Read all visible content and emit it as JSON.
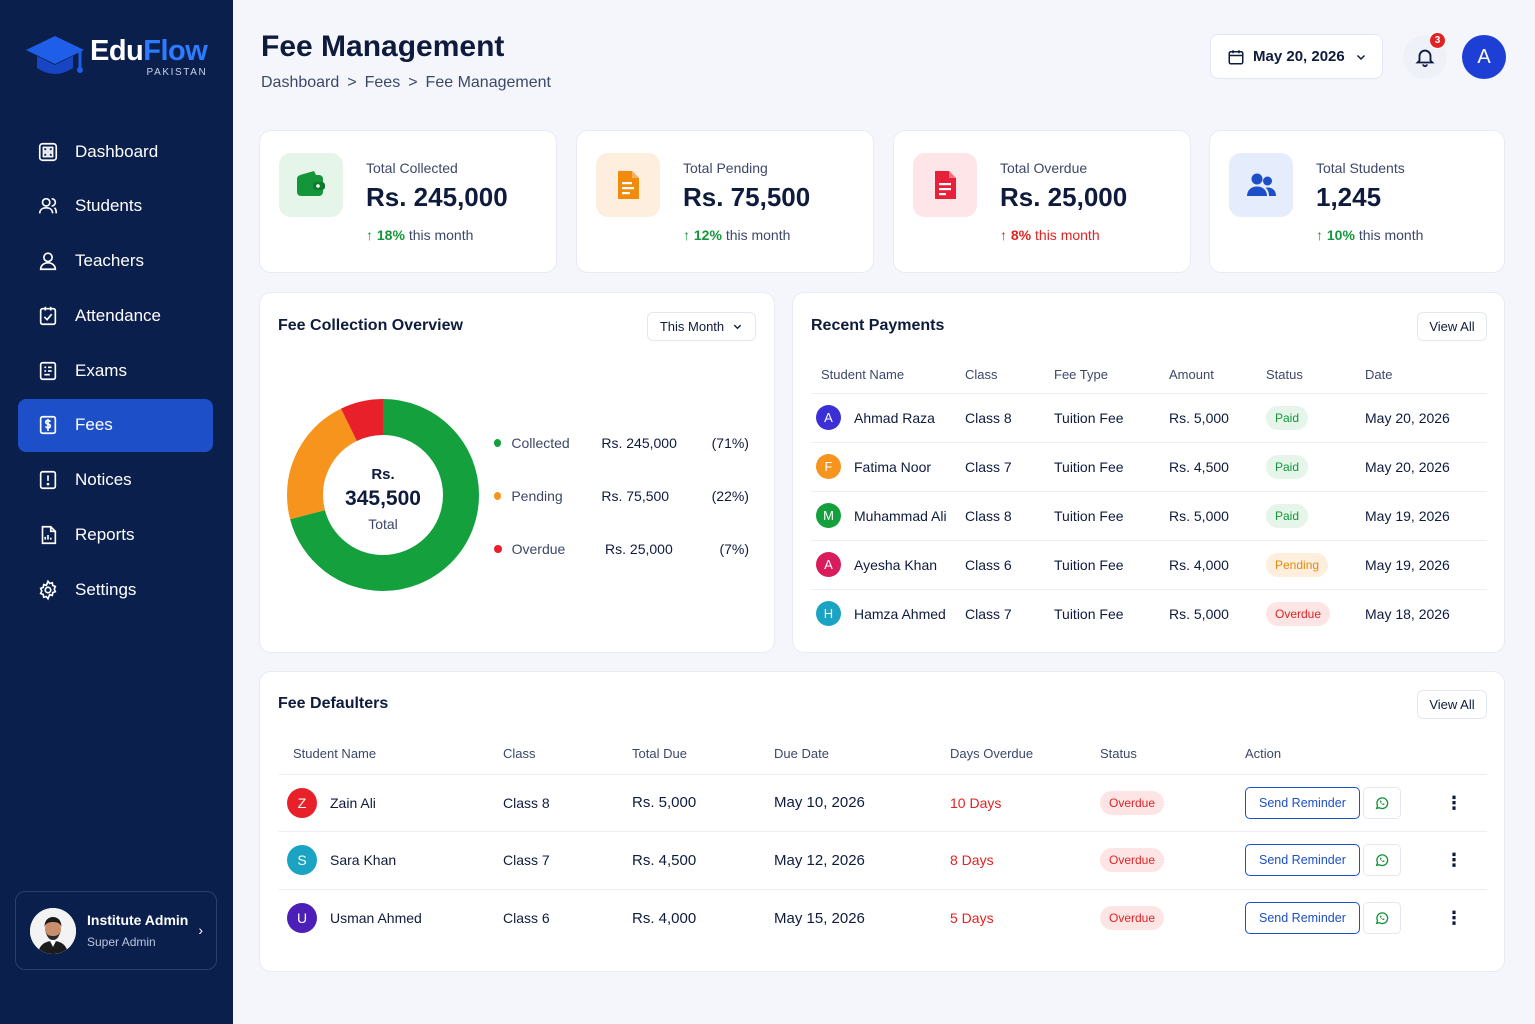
{
  "brand": {
    "name_part1": "Edu",
    "name_part2": "Flow",
    "subtitle": "PAKISTAN"
  },
  "sidebar": {
    "items": [
      {
        "label": "Dashboard",
        "icon": "dashboard-icon"
      },
      {
        "label": "Students",
        "icon": "students-icon"
      },
      {
        "label": "Teachers",
        "icon": "teachers-icon"
      },
      {
        "label": "Attendance",
        "icon": "attendance-icon"
      },
      {
        "label": "Exams",
        "icon": "exams-icon"
      },
      {
        "label": "Fees",
        "icon": "fees-icon",
        "active": true
      },
      {
        "label": "Notices",
        "icon": "notices-icon"
      },
      {
        "label": "Reports",
        "icon": "reports-icon"
      },
      {
        "label": "Settings",
        "icon": "gear-icon"
      }
    ],
    "profile": {
      "name": "Institute Admin",
      "role": "Super Admin"
    }
  },
  "header": {
    "title": "Fee Management",
    "breadcrumb": [
      "Dashboard",
      "Fees",
      "Fee Management"
    ],
    "breadcrumb_sep": ">",
    "date": "May 20, 2026",
    "notification_count": "3",
    "user_initial": "A"
  },
  "stats": [
    {
      "label": "Total Collected",
      "value": "Rs. 245,000",
      "trend": "18%",
      "trend_text": "this month",
      "direction": "up",
      "color": "#14953a",
      "bg": "#e6f5ea",
      "icon": "wallet-icon"
    },
    {
      "label": "Total Pending",
      "value": "Rs. 75,500",
      "trend": "12%",
      "trend_text": "this month",
      "direction": "up",
      "color": "#f28a0c",
      "bg": "#fdeedd",
      "icon": "document-icon"
    },
    {
      "label": "Total Overdue",
      "value": "Rs. 25,000",
      "trend": "8%",
      "trend_text": "this month",
      "direction": "down",
      "color": "#e8203a",
      "bg": "#fde5e8",
      "icon": "invoice-icon"
    },
    {
      "label": "Total Students",
      "value": "1,245",
      "trend": "10%",
      "trend_text": "this month",
      "direction": "up",
      "color": "#1d4fc8",
      "bg": "#e5ecfb",
      "icon": "users-icon"
    }
  ],
  "overview": {
    "title": "Fee Collection Overview",
    "filter": "This Month",
    "center_line1": "Rs.",
    "center_value": "345,500",
    "center_label": "Total",
    "chart_data": {
      "type": "pie",
      "categories": [
        "Collected",
        "Pending",
        "Overdue"
      ],
      "values": [
        245000,
        75500,
        25000
      ],
      "amounts": [
        "Rs. 245,000",
        "Rs. 75,500",
        "Rs. 25,000"
      ],
      "percents": [
        "(71%)",
        "(22%)",
        "(7%)"
      ],
      "colors": [
        "#14a03d",
        "#f7941d",
        "#e8202a"
      ]
    }
  },
  "recent": {
    "title": "Recent Payments",
    "view_all": "View All",
    "columns": [
      "Student Name",
      "Class",
      "Fee Type",
      "Amount",
      "Status",
      "Date"
    ],
    "rows": [
      {
        "initial": "A",
        "color": "#3b2fd6",
        "name": "Ahmad Raza",
        "class": "Class 8",
        "fee_type": "Tuition Fee",
        "amount": "Rs. 5,000",
        "status": "Paid",
        "status_class": "paid",
        "date": "May 20, 2026"
      },
      {
        "initial": "F",
        "color": "#f7941d",
        "name": "Fatima Noor",
        "class": "Class 7",
        "fee_type": "Tuition Fee",
        "amount": "Rs. 4,500",
        "status": "Paid",
        "status_class": "paid",
        "date": "May 20, 2026"
      },
      {
        "initial": "M",
        "color": "#14a03d",
        "name": "Muhammad Ali",
        "class": "Class 8",
        "fee_type": "Tuition Fee",
        "amount": "Rs. 5,000",
        "status": "Paid",
        "status_class": "paid",
        "date": "May 19, 2026"
      },
      {
        "initial": "A",
        "color": "#d91c5c",
        "name": "Ayesha Khan",
        "class": "Class 6",
        "fee_type": "Tuition Fee",
        "amount": "Rs. 4,000",
        "status": "Pending",
        "status_class": "pending",
        "date": "May 19, 2026"
      },
      {
        "initial": "H",
        "color": "#1aa3c2",
        "name": "Hamza Ahmed",
        "class": "Class 7",
        "fee_type": "Tuition Fee",
        "amount": "Rs. 5,000",
        "status": "Overdue",
        "status_class": "overdue",
        "date": "May 18, 2026"
      }
    ]
  },
  "defaulters": {
    "title": "Fee Defaulters",
    "view_all": "View All",
    "columns": [
      "Student Name",
      "Class",
      "Total Due",
      "Due Date",
      "Days Overdue",
      "Status",
      "Action"
    ],
    "action_label": "Send Reminder",
    "rows": [
      {
        "initial": "Z",
        "color": "#e8202a",
        "name": "Zain Ali",
        "class": "Class 8",
        "total_due": "Rs. 5,000",
        "due_date": "May 10, 2026",
        "days": "10 Days",
        "status": "Overdue"
      },
      {
        "initial": "S",
        "color": "#1aa3c2",
        "name": "Sara Khan",
        "class": "Class 7",
        "total_due": "Rs. 4,500",
        "due_date": "May 12, 2026",
        "days": "8 Days",
        "status": "Overdue"
      },
      {
        "initial": "U",
        "color": "#4b1fb8",
        "name": "Usman Ahmed",
        "class": "Class 6",
        "total_due": "Rs. 4,000",
        "due_date": "May 15, 2026",
        "days": "5 Days",
        "status": "Overdue"
      }
    ]
  }
}
